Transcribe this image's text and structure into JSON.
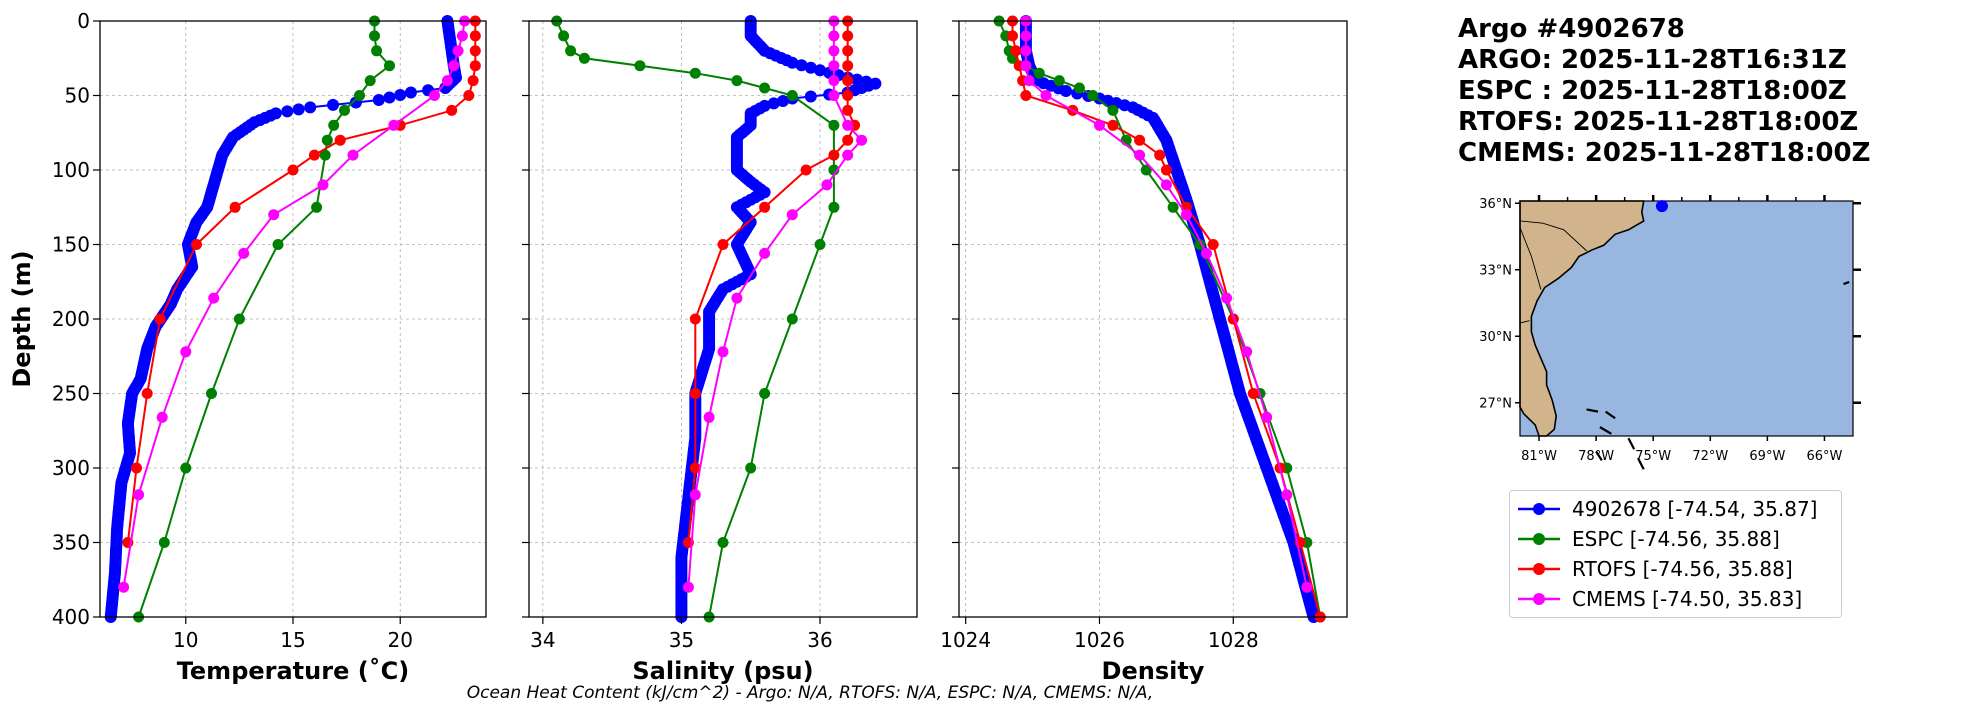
{
  "info": {
    "argo_id": "Argo #4902678",
    "argo_time": "ARGO: 2025-11-28T16:31Z",
    "espc_time": "ESPC : 2025-11-28T18:00Z",
    "rtofs_time": "RTOFS: 2025-11-28T18:00Z",
    "cmems_time": "CMEMS: 2025-11-28T18:00Z"
  },
  "footer": "Ocean Heat Content (kJ/cm^2) - Argo: N/A,  RTOFS: N/A,  ESPC: N/A,  CMEMS: N/A,",
  "colors": {
    "argo": "#0000ff",
    "espc": "#008000",
    "rtofs": "#ff0000",
    "cmems": "#ff00ff",
    "grid": "#b0b0b0",
    "land": "#d2b48c",
    "ocean": "#98b6e0"
  },
  "legend": [
    {
      "label": "4902678 [-74.54, 35.87]",
      "color": "#0000ff"
    },
    {
      "label": "ESPC [-74.56, 35.88]",
      "color": "#008000"
    },
    {
      "label": "RTOFS [-74.56, 35.88]",
      "color": "#ff0000"
    },
    {
      "label": "CMEMS [-74.50, 35.83]",
      "color": "#ff00ff"
    }
  ],
  "map": {
    "lat_labels": [
      "36°N",
      "33°N",
      "30°N",
      "27°N"
    ],
    "lon_labels": [
      "81°W",
      "78°W",
      "75°W",
      "72°W",
      "69°W",
      "66°W"
    ],
    "extent": {
      "lon_min": -82,
      "lon_max": -64.5,
      "lat_min": 25.5,
      "lat_max": 36.1
    },
    "lat_ticks": [
      36,
      33,
      30,
      27
    ],
    "lon_ticks": [
      -81,
      -78,
      -75,
      -72,
      -69,
      -66
    ],
    "float_position": {
      "lon": -74.54,
      "lat": 35.87
    }
  },
  "chart_data": [
    {
      "type": "line",
      "xlabel": "Temperature (˚C)",
      "ylabel": "Depth (m)",
      "xlim": [
        6,
        24
      ],
      "ylim": [
        400,
        0
      ],
      "xticks": [
        10,
        15,
        20
      ],
      "yticks": [
        0,
        50,
        100,
        150,
        200,
        250,
        300,
        350,
        400
      ],
      "grid": true,
      "series": [
        {
          "name": "4902678",
          "key": "argo",
          "dense": true,
          "points": [
            [
              22.2,
              0
            ],
            [
              22.3,
              10
            ],
            [
              22.4,
              20
            ],
            [
              22.5,
              30
            ],
            [
              22.6,
              38
            ],
            [
              22.1,
              45
            ],
            [
              20.5,
              48
            ],
            [
              19,
              53
            ],
            [
              15.8,
              58
            ],
            [
              14.2,
              62
            ],
            [
              13.2,
              68
            ],
            [
              12.2,
              78
            ],
            [
              11.7,
              90
            ],
            [
              11.5,
              100
            ],
            [
              11.3,
              110
            ],
            [
              11,
              125
            ],
            [
              10.5,
              135
            ],
            [
              10.1,
              150
            ],
            [
              10.3,
              165
            ],
            [
              9.6,
              180
            ],
            [
              9.3,
              190
            ],
            [
              8.6,
              205
            ],
            [
              8.2,
              220
            ],
            [
              7.9,
              240
            ],
            [
              7.5,
              250
            ],
            [
              7.3,
              270
            ],
            [
              7.4,
              290
            ],
            [
              7.0,
              310
            ],
            [
              6.8,
              340
            ],
            [
              6.7,
              370
            ],
            [
              6.5,
              400
            ]
          ]
        },
        {
          "name": "ESPC",
          "key": "espc",
          "points": [
            [
              18.8,
              0
            ],
            [
              18.8,
              10
            ],
            [
              18.9,
              20
            ],
            [
              19.5,
              30
            ],
            [
              18.6,
              40
            ],
            [
              18.1,
              50
            ],
            [
              17.4,
              60
            ],
            [
              16.9,
              70
            ],
            [
              16.6,
              80
            ],
            [
              16.5,
              90
            ],
            [
              16.1,
              125
            ],
            [
              14.3,
              150
            ],
            [
              12.5,
              200
            ],
            [
              11.2,
              250
            ],
            [
              10.0,
              300
            ],
            [
              9.0,
              350
            ],
            [
              7.8,
              400
            ]
          ]
        },
        {
          "name": "RTOFS",
          "key": "rtofs",
          "points": [
            [
              23.5,
              0
            ],
            [
              23.5,
              10
            ],
            [
              23.5,
              20
            ],
            [
              23.5,
              30
            ],
            [
              23.4,
              40
            ],
            [
              23.2,
              50
            ],
            [
              22.4,
              60
            ],
            [
              20.0,
              70
            ],
            [
              17.2,
              80
            ],
            [
              16.0,
              90
            ],
            [
              15.0,
              100
            ],
            [
              12.3,
              125
            ],
            [
              10.5,
              150
            ],
            [
              8.8,
              200
            ],
            [
              8.2,
              250
            ],
            [
              7.7,
              300
            ],
            [
              7.3,
              350
            ]
          ]
        },
        {
          "name": "CMEMS",
          "key": "cmems",
          "points": [
            [
              23.0,
              0
            ],
            [
              22.9,
              10
            ],
            [
              22.7,
              20
            ],
            [
              22.5,
              30
            ],
            [
              22.2,
              40
            ],
            [
              21.6,
              50
            ],
            [
              19.7,
              70
            ],
            [
              17.8,
              90
            ],
            [
              16.4,
              110
            ],
            [
              14.1,
              130
            ],
            [
              12.7,
              156
            ],
            [
              11.3,
              186
            ],
            [
              10.0,
              222
            ],
            [
              8.9,
              266
            ],
            [
              7.8,
              318
            ],
            [
              7.1,
              380
            ]
          ]
        }
      ]
    },
    {
      "type": "line",
      "xlabel": "Salinity (psu)",
      "ylabel": "",
      "xlim": [
        33.9,
        36.7
      ],
      "ylim": [
        400,
        0
      ],
      "xticks": [
        34,
        35,
        36
      ],
      "yticks": [
        0,
        50,
        100,
        150,
        200,
        250,
        300,
        350,
        400
      ],
      "grid": true,
      "series": [
        {
          "name": "4902678",
          "key": "argo",
          "dense": true,
          "points": [
            [
              35.5,
              0
            ],
            [
              35.5,
              10
            ],
            [
              35.6,
              20
            ],
            [
              35.8,
              28
            ],
            [
              36.0,
              33
            ],
            [
              36.2,
              38
            ],
            [
              36.4,
              42
            ],
            [
              36.2,
              48
            ],
            [
              35.8,
              52
            ],
            [
              35.6,
              57
            ],
            [
              35.5,
              62
            ],
            [
              35.5,
              70
            ],
            [
              35.4,
              78
            ],
            [
              35.4,
              90
            ],
            [
              35.4,
              100
            ],
            [
              35.5,
              108
            ],
            [
              35.6,
              115
            ],
            [
              35.4,
              125
            ],
            [
              35.5,
              135
            ],
            [
              35.4,
              150
            ],
            [
              35.5,
              170
            ],
            [
              35.3,
              180
            ],
            [
              35.2,
              195
            ],
            [
              35.2,
              220
            ],
            [
              35.1,
              250
            ],
            [
              35.1,
              280
            ],
            [
              35.05,
              320
            ],
            [
              35.0,
              360
            ],
            [
              35.0,
              400
            ]
          ]
        },
        {
          "name": "ESPC",
          "key": "espc",
          "points": [
            [
              34.1,
              0
            ],
            [
              34.15,
              10
            ],
            [
              34.2,
              20
            ],
            [
              34.3,
              25
            ],
            [
              34.7,
              30
            ],
            [
              35.1,
              35
            ],
            [
              35.4,
              40
            ],
            [
              35.6,
              45
            ],
            [
              35.8,
              50
            ],
            [
              36.1,
              70
            ],
            [
              36.1,
              100
            ],
            [
              36.1,
              125
            ],
            [
              36.0,
              150
            ],
            [
              35.8,
              200
            ],
            [
              35.6,
              250
            ],
            [
              35.5,
              300
            ],
            [
              35.3,
              350
            ],
            [
              35.2,
              400
            ]
          ]
        },
        {
          "name": "RTOFS",
          "key": "rtofs",
          "points": [
            [
              36.2,
              0
            ],
            [
              36.2,
              10
            ],
            [
              36.2,
              20
            ],
            [
              36.2,
              30
            ],
            [
              36.2,
              40
            ],
            [
              36.2,
              50
            ],
            [
              36.2,
              60
            ],
            [
              36.25,
              70
            ],
            [
              36.2,
              80
            ],
            [
              36.1,
              90
            ],
            [
              35.9,
              100
            ],
            [
              35.6,
              125
            ],
            [
              35.3,
              150
            ],
            [
              35.1,
              200
            ],
            [
              35.1,
              250
            ],
            [
              35.1,
              300
            ],
            [
              35.05,
              350
            ]
          ]
        },
        {
          "name": "CMEMS",
          "key": "cmems",
          "points": [
            [
              36.1,
              0
            ],
            [
              36.1,
              10
            ],
            [
              36.1,
              20
            ],
            [
              36.1,
              30
            ],
            [
              36.1,
              40
            ],
            [
              36.1,
              50
            ],
            [
              36.2,
              70
            ],
            [
              36.3,
              80
            ],
            [
              36.2,
              90
            ],
            [
              36.05,
              110
            ],
            [
              35.8,
              130
            ],
            [
              35.6,
              156
            ],
            [
              35.4,
              186
            ],
            [
              35.3,
              222
            ],
            [
              35.2,
              266
            ],
            [
              35.1,
              318
            ],
            [
              35.05,
              380
            ]
          ]
        }
      ]
    },
    {
      "type": "line",
      "xlabel": "Density",
      "ylabel": "",
      "xlim": [
        1023.9,
        1029.7
      ],
      "ylim": [
        400,
        0
      ],
      "xticks": [
        1024,
        1026,
        1028
      ],
      "yticks": [
        0,
        50,
        100,
        150,
        200,
        250,
        300,
        350,
        400
      ],
      "grid": true,
      "series": [
        {
          "name": "4902678",
          "key": "argo",
          "dense": true,
          "points": [
            [
              1024.9,
              0
            ],
            [
              1024.9,
              10
            ],
            [
              1024.9,
              20
            ],
            [
              1024.95,
              30
            ],
            [
              1025.05,
              40
            ],
            [
              1025.5,
              47
            ],
            [
              1026.0,
              52
            ],
            [
              1026.5,
              58
            ],
            [
              1026.8,
              65
            ],
            [
              1027.0,
              80
            ],
            [
              1027.15,
              100
            ],
            [
              1027.3,
              120
            ],
            [
              1027.5,
              150
            ],
            [
              1027.8,
              200
            ],
            [
              1028.1,
              250
            ],
            [
              1028.5,
              300
            ],
            [
              1028.9,
              350
            ],
            [
              1029.2,
              400
            ]
          ]
        },
        {
          "name": "ESPC",
          "key": "espc",
          "points": [
            [
              1024.5,
              0
            ],
            [
              1024.6,
              10
            ],
            [
              1024.65,
              20
            ],
            [
              1024.7,
              25
            ],
            [
              1024.9,
              30
            ],
            [
              1025.1,
              35
            ],
            [
              1025.4,
              40
            ],
            [
              1025.7,
              45
            ],
            [
              1025.9,
              50
            ],
            [
              1026.2,
              60
            ],
            [
              1026.4,
              80
            ],
            [
              1026.7,
              100
            ],
            [
              1027.1,
              125
            ],
            [
              1027.5,
              150
            ],
            [
              1028.0,
              200
            ],
            [
              1028.4,
              250
            ],
            [
              1028.8,
              300
            ],
            [
              1029.1,
              350
            ],
            [
              1029.3,
              400
            ]
          ]
        },
        {
          "name": "RTOFS",
          "key": "rtofs",
          "points": [
            [
              1024.7,
              0
            ],
            [
              1024.7,
              10
            ],
            [
              1024.75,
              20
            ],
            [
              1024.8,
              30
            ],
            [
              1024.85,
              40
            ],
            [
              1024.9,
              50
            ],
            [
              1025.6,
              60
            ],
            [
              1026.2,
              70
            ],
            [
              1026.6,
              80
            ],
            [
              1026.9,
              90
            ],
            [
              1027.0,
              100
            ],
            [
              1027.3,
              125
            ],
            [
              1027.7,
              150
            ],
            [
              1028.0,
              200
            ],
            [
              1028.3,
              250
            ],
            [
              1028.7,
              300
            ],
            [
              1029.0,
              350
            ],
            [
              1029.3,
              400
            ]
          ]
        },
        {
          "name": "CMEMS",
          "key": "cmems",
          "points": [
            [
              1024.9,
              0
            ],
            [
              1024.9,
              10
            ],
            [
              1024.9,
              20
            ],
            [
              1024.9,
              30
            ],
            [
              1024.95,
              40
            ],
            [
              1025.2,
              50
            ],
            [
              1026.0,
              70
            ],
            [
              1026.6,
              90
            ],
            [
              1027.0,
              110
            ],
            [
              1027.3,
              130
            ],
            [
              1027.6,
              156
            ],
            [
              1027.9,
              186
            ],
            [
              1028.2,
              222
            ],
            [
              1028.5,
              266
            ],
            [
              1028.8,
              318
            ],
            [
              1029.1,
              380
            ]
          ]
        }
      ]
    }
  ]
}
